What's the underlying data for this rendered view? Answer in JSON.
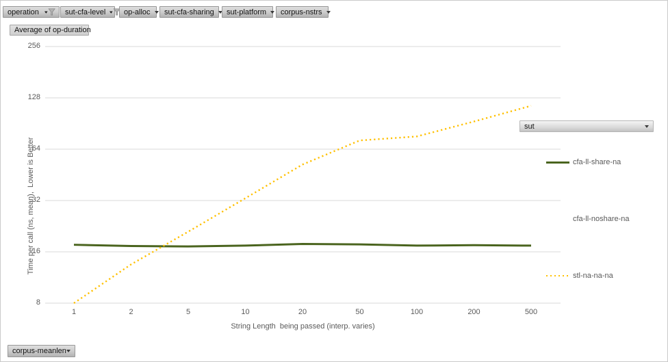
{
  "window": {
    "background": "#ffffff",
    "border_color": "#c9c9c9"
  },
  "pivot_filters": {
    "buttons": [
      {
        "label": "operation",
        "state": "filtered"
      },
      {
        "label": "sut-cfa-level",
        "state": "filtered"
      },
      {
        "label": "op-alloc",
        "state": "dropdown"
      },
      {
        "label": "sut-cfa-sharing",
        "state": "dropdown"
      },
      {
        "label": "sut-platform",
        "state": "dropdown"
      },
      {
        "label": "corpus-nstrs",
        "state": "dropdown"
      }
    ]
  },
  "value_field_button": {
    "label": "Average of op-duration"
  },
  "legend_field_button": {
    "label": "sut"
  },
  "category_field_button": {
    "label": "corpus-meanlen"
  },
  "legend": {
    "entries": [
      {
        "label": "cfa-ll-share-na",
        "swatch": "solid",
        "color": "#4a641e"
      },
      {
        "label": "cfa-ll-noshare-na",
        "swatch": "none",
        "color": ""
      },
      {
        "label": "stl-na-na-na",
        "swatch": "dotted",
        "color": "#ffc000"
      }
    ]
  },
  "chart_data": {
    "type": "line",
    "title": "",
    "xlabel": "String Length  being passed (interp. varies)",
    "ylabel": "Time per call (ns, mean),  Lower is Better",
    "x_scale": "logarithmic categories",
    "y_scale": "log2",
    "categories": [
      1,
      2,
      5,
      10,
      20,
      50,
      100,
      200,
      500
    ],
    "y_ticks": [
      256,
      128,
      64,
      32,
      16,
      8
    ],
    "ylim": [
      8,
      256
    ],
    "grid": true,
    "grid_color": "#d9d9d9",
    "tick_label_color": "#595959",
    "legend_position": "right",
    "series": [
      {
        "name": "cfa-ll-share-na",
        "style": "solid",
        "color": "#4a641e",
        "values": [
          17.6,
          17.3,
          17.2,
          17.4,
          17.8,
          17.7,
          17.4,
          17.5,
          17.4
        ]
      },
      {
        "name": "cfa-ll-noshare-na",
        "style": "hidden",
        "color": null,
        "values": null
      },
      {
        "name": "stl-na-na-na",
        "style": "dotted",
        "color": "#ffc000",
        "values": [
          8,
          13.5,
          21,
          33,
          52,
          72,
          76,
          93,
          115
        ]
      }
    ]
  }
}
